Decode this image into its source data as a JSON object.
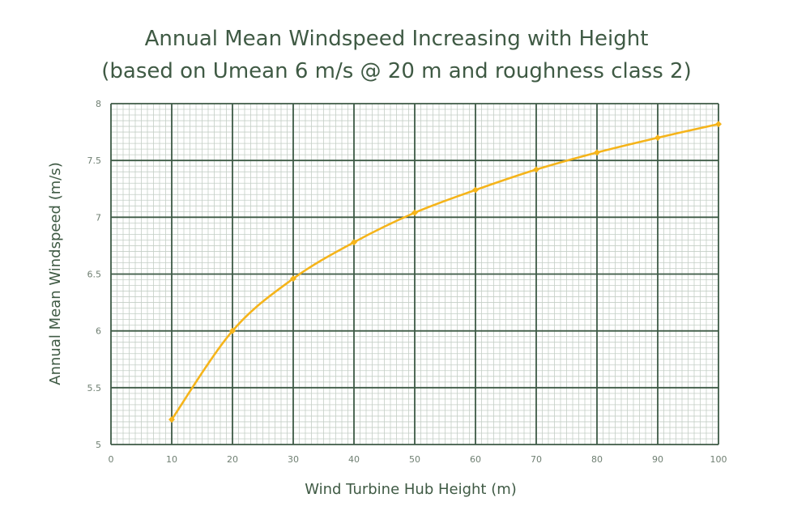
{
  "chart_data": {
    "type": "line",
    "title": "Annual Mean Windspeed Increasing with Height",
    "subtitle": "(based on Umean 6 m/s @ 20 m and roughness class 2)",
    "xlabel": "Wind Turbine Hub Height (m)",
    "ylabel": "Annual Mean Windspeed (m/s)",
    "xlim": [
      0,
      100
    ],
    "ylim": [
      5,
      8
    ],
    "x_ticks": [
      0,
      10,
      20,
      30,
      40,
      50,
      60,
      70,
      80,
      90,
      100
    ],
    "y_ticks": [
      5,
      5.5,
      6,
      6.5,
      7,
      7.5,
      8
    ],
    "grid": true,
    "series": [
      {
        "color": "#f5b41a",
        "x": [
          10,
          20,
          30,
          40,
          50,
          60,
          70,
          80,
          90,
          100
        ],
        "y": [
          5.22,
          6.0,
          6.46,
          6.78,
          7.04,
          7.24,
          7.42,
          7.57,
          7.7,
          7.82
        ]
      }
    ],
    "colors": {
      "grid_major": "#3d5a45",
      "grid_minor": "#c4cfc6",
      "text": "#3f5a44"
    }
  }
}
